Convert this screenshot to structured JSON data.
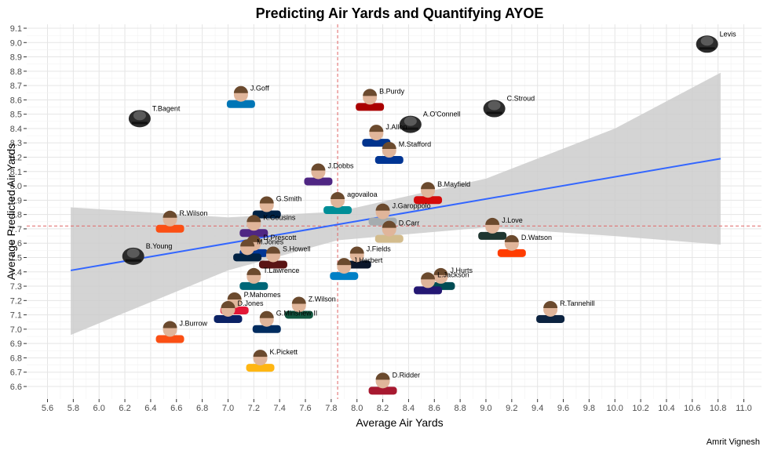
{
  "chart_data": {
    "type": "scatter",
    "title": "Predicting Air Yards and Quantifying AYOE",
    "xlabel": "Average Air Yards",
    "ylabel": "Average Predicted Air Yards",
    "caption": "Amrit Vignesh",
    "xlim": [
      5.5,
      11.05
    ],
    "ylim": [
      6.5,
      9.12
    ],
    "x_ticks": [
      5.6,
      5.8,
      6.0,
      6.2,
      6.4,
      6.6,
      6.8,
      7.0,
      7.2,
      7.4,
      7.6,
      7.8,
      8.0,
      8.2,
      8.4,
      8.6,
      8.8,
      9.0,
      9.2,
      9.4,
      9.6,
      9.8,
      10.0,
      10.2,
      10.4,
      10.6,
      10.8,
      11.0
    ],
    "y_ticks": [
      6.6,
      6.7,
      6.8,
      6.9,
      7.0,
      7.1,
      7.2,
      7.3,
      7.4,
      7.5,
      7.6,
      7.7,
      7.8,
      7.9,
      8.0,
      8.1,
      8.2,
      8.3,
      8.4,
      8.5,
      8.6,
      8.7,
      8.8,
      8.9,
      9.0,
      9.1
    ],
    "grid": true,
    "reference_lines": {
      "mean_x": 7.85,
      "mean_y": 7.72,
      "color": "#e06666"
    },
    "trend_line": {
      "x0": 5.78,
      "y0": 7.41,
      "x1": 10.82,
      "y1": 8.19,
      "color": "#3366ff"
    },
    "confidence_band": {
      "x": [
        5.78,
        7.0,
        7.85,
        9.0,
        10.0,
        10.82
      ],
      "upper": [
        7.85,
        7.78,
        7.82,
        8.05,
        8.4,
        8.79
      ],
      "lower": [
        6.96,
        7.41,
        7.62,
        7.71,
        7.65,
        7.59
      ],
      "color": "#cccccc"
    },
    "points": [
      {
        "name": "W.Levis",
        "label": "Levis",
        "x": 10.8,
        "y": 9.0,
        "helmet": true,
        "color": "#1a1a1a"
      },
      {
        "name": "T.Bagent",
        "label": "T.Bagent",
        "x": 6.4,
        "y": 8.48,
        "helmet": true,
        "color": "#1a1a1a"
      },
      {
        "name": "J.Goff",
        "label": "J.Goff",
        "x": 7.1,
        "y": 8.62,
        "helmet": false,
        "color": "#0076b6"
      },
      {
        "name": "B.Purdy",
        "label": "B.Purdy",
        "x": 8.1,
        "y": 8.6,
        "helmet": false,
        "color": "#aa0000"
      },
      {
        "name": "A.O'Connell",
        "label": "A.O'Connell",
        "x": 8.5,
        "y": 8.44,
        "helmet": true,
        "color": "#1a1a1a"
      },
      {
        "name": "C.Stroud",
        "label": "C.Stroud",
        "x": 9.15,
        "y": 8.55,
        "helmet": true,
        "color": "#1a1a1a"
      },
      {
        "name": "J.Allen",
        "label": "J.Allen",
        "x": 8.15,
        "y": 8.35,
        "helmet": false,
        "color": "#00338d"
      },
      {
        "name": "M.Stafford",
        "label": "M.Stafford",
        "x": 8.25,
        "y": 8.23,
        "helmet": false,
        "color": "#003594"
      },
      {
        "name": "J.Dobbs",
        "label": "J.Dobbs",
        "x": 7.7,
        "y": 8.08,
        "helmet": false,
        "color": "#4f2683"
      },
      {
        "name": "T.Tagovailoa",
        "label": "agovailoa",
        "x": 7.85,
        "y": 7.88,
        "helmet": false,
        "color": "#008e97"
      },
      {
        "name": "B.Mayfield",
        "label": "B.Mayfield",
        "x": 8.55,
        "y": 7.95,
        "helmet": false,
        "color": "#d50a0a"
      },
      {
        "name": "G.Smith",
        "label": "G.Smith",
        "x": 7.3,
        "y": 7.85,
        "helmet": false,
        "color": "#002244"
      },
      {
        "name": "J.Garoppolo",
        "label": "J.Garoppolo",
        "x": 8.2,
        "y": 7.8,
        "helmet": false,
        "color": "#a5acaf"
      },
      {
        "name": "R.Wilson",
        "label": "R.Wilson",
        "x": 6.55,
        "y": 7.75,
        "helmet": false,
        "color": "#fb4f14"
      },
      {
        "name": "J.Love",
        "label": "J.Love",
        "x": 9.05,
        "y": 7.7,
        "helmet": false,
        "color": "#203731"
      },
      {
        "name": "K.Cousins",
        "label": "K.Cousins",
        "x": 7.2,
        "y": 7.72,
        "helmet": false,
        "color": "#4f2683"
      },
      {
        "name": "D.Carr",
        "label": "D.Carr",
        "x": 8.25,
        "y": 7.68,
        "helmet": false,
        "color": "#d3bc8d"
      },
      {
        "name": "D.Prescott",
        "label": "D.Prescott",
        "x": 7.2,
        "y": 7.58,
        "helmet": false,
        "color": "#003594"
      },
      {
        "name": "M.Jones",
        "label": "M.Jones",
        "x": 7.15,
        "y": 7.55,
        "helmet": false,
        "color": "#002244"
      },
      {
        "name": "S.Howell",
        "label": "S.Howell",
        "x": 7.35,
        "y": 7.5,
        "helmet": false,
        "color": "#5a1414"
      },
      {
        "name": "J.Fields",
        "label": "J.Fields",
        "x": 8.0,
        "y": 7.5,
        "helmet": false,
        "color": "#0b162a"
      },
      {
        "name": "D.Watson",
        "label": "D.Watson",
        "x": 9.2,
        "y": 7.58,
        "helmet": false,
        "color": "#ff3c00"
      },
      {
        "name": "B.Young",
        "label": "B.Young",
        "x": 6.35,
        "y": 7.52,
        "helmet": true,
        "color": "#1a1a1a"
      },
      {
        "name": "J.Herbert",
        "label": "J.Herbert",
        "x": 7.9,
        "y": 7.42,
        "helmet": false,
        "color": "#0080c6"
      },
      {
        "name": "J.Hurts",
        "label": "J.Hurts",
        "x": 8.65,
        "y": 7.35,
        "helmet": false,
        "color": "#004c54"
      },
      {
        "name": "T.Lawrence",
        "label": "T.Lawrence",
        "x": 7.2,
        "y": 7.35,
        "helmet": false,
        "color": "#006778"
      },
      {
        "name": "L.Jackson",
        "label": "L.Jackson",
        "x": 8.55,
        "y": 7.32,
        "helmet": false,
        "color": "#241773"
      },
      {
        "name": "R.Tannehill",
        "label": "R.Tannehill",
        "x": 9.5,
        "y": 7.12,
        "helmet": false,
        "color": "#0c2340"
      },
      {
        "name": "P.Mahomes",
        "label": "P.Mahomes",
        "x": 7.05,
        "y": 7.18,
        "helmet": false,
        "color": "#e31837"
      },
      {
        "name": "D.Jones",
        "label": "D.Jones",
        "x": 7.0,
        "y": 7.12,
        "helmet": false,
        "color": "#0b2265"
      },
      {
        "name": "Z.Wilson",
        "label": "Z.Wilson",
        "x": 7.55,
        "y": 7.15,
        "helmet": false,
        "color": "#125740"
      },
      {
        "name": "G.Minshew II",
        "label": "G.Minshew II",
        "x": 7.3,
        "y": 7.05,
        "helmet": false,
        "color": "#002c5f"
      },
      {
        "name": "J.Burrow",
        "label": "J.Burrow",
        "x": 6.55,
        "y": 6.98,
        "helmet": false,
        "color": "#fb4f14"
      },
      {
        "name": "K.Pickett",
        "label": "K.Pickett",
        "x": 7.25,
        "y": 6.78,
        "helmet": false,
        "color": "#ffb612"
      },
      {
        "name": "D.Ridder",
        "label": "D.Ridder",
        "x": 8.2,
        "y": 6.62,
        "helmet": false,
        "color": "#a71930"
      }
    ]
  }
}
